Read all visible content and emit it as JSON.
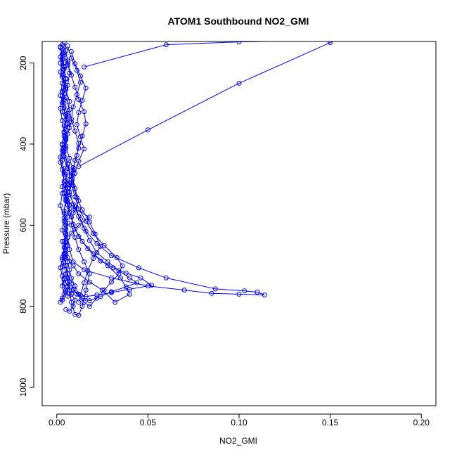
{
  "chart_data": {
    "type": "scatter",
    "title": "ATOM1 Southbound NO2_GMI",
    "xlabel": "NO2_GMI",
    "ylabel": "Pressure (mbar)",
    "xlim": [
      -0.008,
      0.208
    ],
    "ylim": [
      1045,
      147
    ],
    "y_reversed": true,
    "x_ticks": [
      "0.00",
      "0.05",
      "0.10",
      "0.15",
      "0.20"
    ],
    "y_ticks": [
      "200",
      "400",
      "600",
      "800",
      "1000"
    ],
    "grid": false,
    "legend": "none",
    "color": "#0000ff",
    "marker": "open-circle",
    "connected": true,
    "series": [
      {
        "x": [
          0.003,
          0.004,
          0.002,
          0.003,
          0.005,
          0.004,
          0.003,
          0.006,
          0.004,
          0.005,
          0.003,
          0.004,
          0.006,
          0.005,
          0.007,
          0.004,
          0.005,
          0.006,
          0.004,
          0.005,
          0.006,
          0.007,
          0.005,
          0.006,
          0.008,
          0.007,
          0.006,
          0.005,
          0.004,
          0.003,
          0.005,
          0.008,
          0.012,
          0.018,
          0.01,
          0.006,
          0.004,
          0.005
        ],
        "y": [
          155,
          175,
          200,
          230,
          260,
          290,
          320,
          350,
          380,
          410,
          440,
          470,
          500,
          530,
          560,
          590,
          620,
          650,
          680,
          700,
          720,
          740,
          760,
          775,
          770,
          760,
          740,
          720,
          700,
          680,
          650,
          620,
          600,
          580,
          560,
          540,
          520,
          500
        ]
      },
      {
        "x": [
          0.002,
          0.003,
          0.004,
          0.003,
          0.002,
          0.004,
          0.005,
          0.004,
          0.003,
          0.004,
          0.006,
          0.005,
          0.004,
          0.006,
          0.008,
          0.01,
          0.014,
          0.02,
          0.028,
          0.035,
          0.04,
          0.032,
          0.025,
          0.018,
          0.012,
          0.009,
          0.007,
          0.006,
          0.005,
          0.004,
          0.005,
          0.006,
          0.007,
          0.006,
          0.005,
          0.004
        ],
        "y": [
          160,
          190,
          215,
          250,
          280,
          310,
          340,
          370,
          400,
          430,
          460,
          490,
          520,
          550,
          580,
          610,
          640,
          670,
          700,
          730,
          770,
          790,
          760,
          740,
          720,
          700,
          690,
          680,
          660,
          640,
          610,
          580,
          550,
          520,
          490,
          460
        ]
      },
      {
        "x": [
          0.004,
          0.005,
          0.006,
          0.007,
          0.006,
          0.005,
          0.007,
          0.008,
          0.006,
          0.005,
          0.007,
          0.009,
          0.008,
          0.007,
          0.01,
          0.013,
          0.016,
          0.022,
          0.03,
          0.045,
          0.06,
          0.087,
          0.103,
          0.11,
          0.114,
          0.1,
          0.085,
          0.07,
          0.05,
          0.03,
          0.015,
          0.009,
          0.007,
          0.006,
          0.005,
          0.004,
          0.005,
          0.006
        ],
        "y": [
          150,
          170,
          195,
          225,
          255,
          285,
          315,
          345,
          375,
          405,
          435,
          465,
          495,
          525,
          555,
          585,
          615,
          645,
          675,
          705,
          730,
          757,
          762,
          765,
          772,
          770,
          768,
          760,
          750,
          730,
          710,
          690,
          660,
          630,
          600,
          570,
          540,
          510
        ]
      },
      {
        "x": [
          0.003,
          0.002,
          0.004,
          0.005,
          0.003,
          0.004,
          0.006,
          0.007,
          0.005,
          0.004,
          0.006,
          0.008,
          0.01,
          0.012,
          0.009,
          0.008,
          0.01,
          0.012,
          0.015,
          0.018,
          0.016,
          0.014,
          0.012,
          0.01,
          0.008,
          0.007,
          0.006,
          0.005,
          0.004,
          0.003
        ],
        "y": [
          165,
          185,
          210,
          240,
          270,
          300,
          330,
          360,
          390,
          420,
          450,
          480,
          510,
          540,
          570,
          600,
          630,
          660,
          690,
          720,
          760,
          800,
          822,
          820,
          790,
          760,
          730,
          700,
          670,
          640
        ]
      },
      {
        "x": [
          0.005,
          0.006,
          0.008,
          0.01,
          0.012,
          0.015,
          0.016,
          0.014,
          0.012,
          0.01,
          0.009,
          0.008,
          0.01,
          0.012,
          0.016,
          0.02,
          0.026,
          0.033,
          0.036,
          0.034,
          0.03,
          0.026,
          0.022,
          0.018,
          0.015,
          0.012,
          0.01,
          0.008,
          0.007,
          0.006,
          0.005
        ],
        "y": [
          170,
          200,
          230,
          260,
          290,
          320,
          350,
          380,
          410,
          440,
          470,
          500,
          530,
          560,
          590,
          620,
          650,
          680,
          700,
          720,
          740,
          760,
          780,
          800,
          790,
          770,
          750,
          730,
          710,
          690,
          670
        ]
      },
      {
        "x": [
          0.004,
          0.006,
          0.003,
          0.005,
          0.007,
          0.006,
          0.004,
          0.005,
          0.003,
          0.002,
          0.004,
          0.003,
          0.005,
          0.004,
          0.006,
          0.005,
          0.004,
          0.003,
          0.002,
          0.003,
          0.004,
          0.005,
          0.003,
          0.002,
          0.003,
          0.004,
          0.003,
          0.004
        ],
        "y": [
          180,
          205,
          235,
          265,
          295,
          325,
          355,
          385,
          415,
          445,
          475,
          505,
          535,
          565,
          595,
          625,
          655,
          685,
          705,
          725,
          745,
          765,
          780,
          790,
          785,
          770,
          750,
          735
        ]
      },
      {
        "x": [
          0.015,
          0.06,
          0.1,
          0.15
        ],
        "y": [
          210,
          155,
          148,
          145
        ]
      },
      {
        "x": [
          0.012,
          0.05,
          0.1,
          0.15
        ],
        "y": [
          455,
          365,
          250,
          150
        ]
      },
      {
        "x": [
          0.006,
          0.008,
          0.011,
          0.013,
          0.011,
          0.009,
          0.008,
          0.01,
          0.012,
          0.011,
          0.009,
          0.008,
          0.007,
          0.009,
          0.012,
          0.015,
          0.018,
          0.022,
          0.028,
          0.034,
          0.04,
          0.044,
          0.038,
          0.03,
          0.024,
          0.018,
          0.014,
          0.011,
          0.009,
          0.008
        ],
        "y": [
          158,
          188,
          218,
          248,
          278,
          308,
          338,
          368,
          398,
          428,
          458,
          488,
          518,
          548,
          578,
          608,
          638,
          668,
          690,
          712,
          730,
          742,
          752,
          764,
          776,
          786,
          780,
          770,
          758,
          745
        ]
      },
      {
        "x": [
          0.002,
          0.003,
          0.002,
          0.004,
          0.003,
          0.002,
          0.003,
          0.004,
          0.003,
          0.002,
          0.003,
          0.004,
          0.003,
          0.002,
          0.004,
          0.003,
          0.005,
          0.004,
          0.003,
          0.004,
          0.006,
          0.008,
          0.01,
          0.009,
          0.007,
          0.005
        ],
        "y": [
          162,
          192,
          222,
          252,
          282,
          312,
          342,
          372,
          402,
          432,
          462,
          492,
          522,
          552,
          582,
          612,
          642,
          672,
          702,
          732,
          752,
          770,
          785,
          800,
          812,
          808
        ]
      },
      {
        "x": [
          0.008,
          0.01,
          0.013,
          0.016,
          0.014,
          0.012,
          0.011,
          0.013,
          0.015,
          0.012,
          0.01,
          0.009,
          0.011,
          0.014,
          0.018,
          0.021,
          0.024,
          0.02,
          0.017,
          0.015,
          0.013,
          0.012
        ],
        "y": [
          172,
          202,
          232,
          262,
          292,
          322,
          352,
          382,
          412,
          442,
          472,
          502,
          532,
          562,
          592,
          622,
          652,
          682,
          712,
          742,
          772,
          790
        ]
      },
      {
        "x": [
          0.003,
          0.004,
          0.005,
          0.004,
          0.003,
          0.005,
          0.006,
          0.005,
          0.004,
          0.006,
          0.007,
          0.006,
          0.005,
          0.007,
          0.009,
          0.012,
          0.017,
          0.024,
          0.031,
          0.038,
          0.046,
          0.052,
          0.04,
          0.03,
          0.022,
          0.016,
          0.012,
          0.009
        ],
        "y": [
          178,
          208,
          238,
          268,
          298,
          328,
          358,
          388,
          418,
          448,
          478,
          508,
          538,
          568,
          598,
          628,
          658,
          688,
          705,
          718,
          730,
          748,
          758,
          766,
          772,
          776,
          770,
          760
        ]
      }
    ]
  }
}
